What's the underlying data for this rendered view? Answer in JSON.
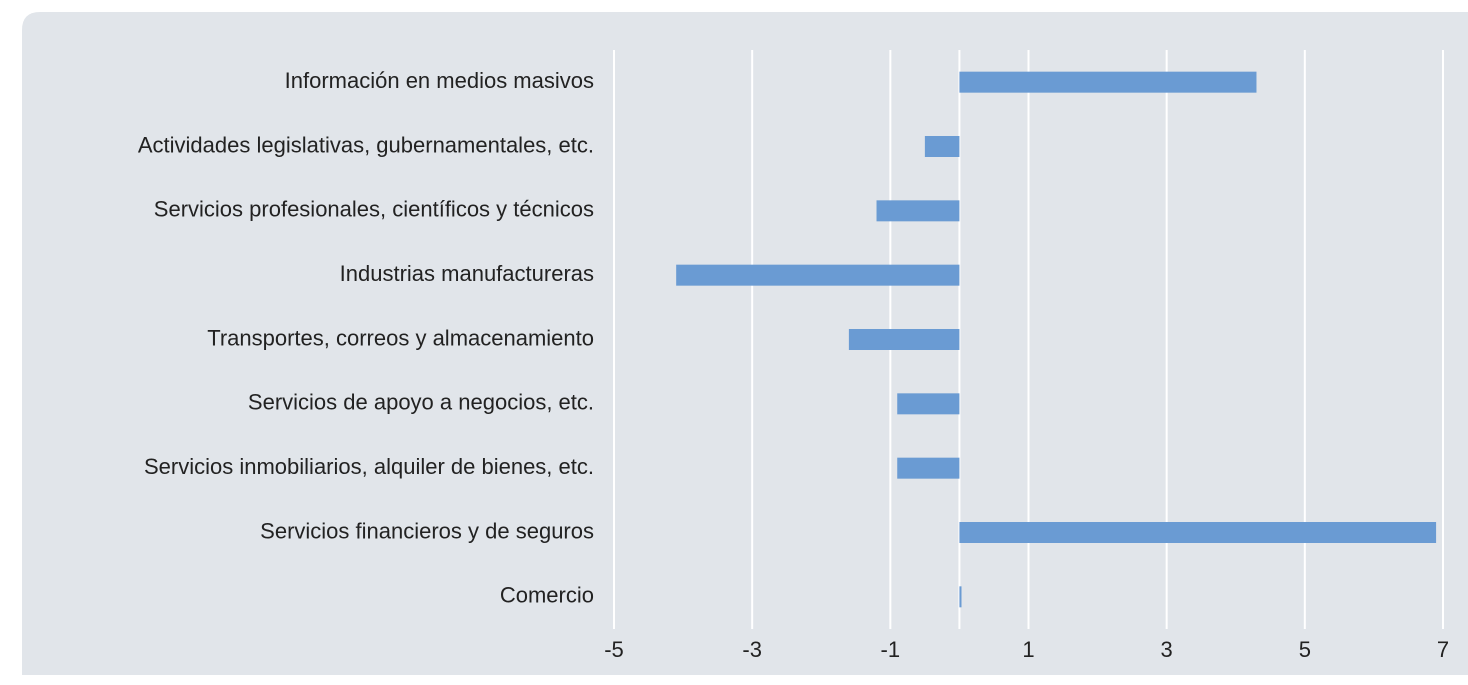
{
  "chart_data": {
    "type": "barh",
    "categories": [
      "Información en medios masivos",
      "Actividades legislativas, gubernamentales, etc.",
      "Servicios profesionales, científicos y técnicos",
      "Industrias manufactureras",
      "Transportes, correos y almacenamiento",
      "Servicios de apoyo a negocios, etc.",
      "Servicios inmobiliarios, alquiler de bienes, etc.",
      "Servicios financieros y de seguros",
      "Comercio"
    ],
    "values": [
      4.3,
      -0.5,
      -1.2,
      -4.1,
      -1.6,
      -0.9,
      -0.9,
      6.9,
      0.03
    ],
    "color": "#6a9bd3",
    "xlim": [
      -5,
      7
    ],
    "xticks": [
      -5,
      -3,
      -1,
      1,
      3,
      5,
      7
    ],
    "grid": true
  }
}
